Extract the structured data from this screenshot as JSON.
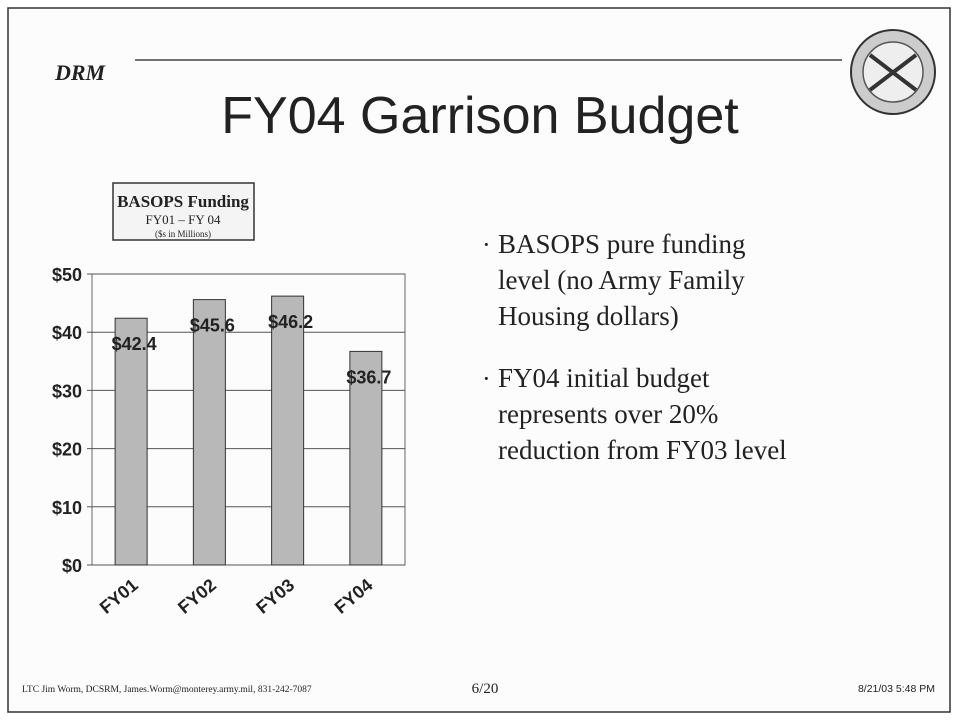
{
  "header": {
    "org": "DRM"
  },
  "title": "FY04 Garrison Budget",
  "chart_data": {
    "type": "bar",
    "title": "BASOPS Funding",
    "subtitle": "FY01 – FY 04",
    "note": "($s in Millions)",
    "categories": [
      "FY01",
      "FY02",
      "FY03",
      "FY04"
    ],
    "values": [
      42.4,
      45.6,
      46.2,
      36.7
    ],
    "value_labels": [
      "$42.4",
      "$45.6",
      "$46.2",
      "$36.7"
    ],
    "color": "#b8b8b8",
    "ylim": [
      0,
      50
    ],
    "yticks": [
      {
        "value": 0,
        "label": "$0"
      },
      {
        "value": 10,
        "label": "$10"
      },
      {
        "value": 20,
        "label": "$20"
      },
      {
        "value": 30,
        "label": "$30"
      },
      {
        "value": 40,
        "label": "$40"
      },
      {
        "value": 50,
        "label": "$50"
      }
    ],
    "grid": true
  },
  "bullets": [
    [
      "BASOPS pure funding",
      "level (no Army Family",
      "Housing dollars)"
    ],
    [
      "FY04 initial budget",
      "represents over 20%",
      "reduction from FY03 level"
    ]
  ],
  "footer": {
    "author": "LTC Jim Worm, DCSRM, James.Worm@monterey.army.mil, 831-242-7087",
    "page": "6/20",
    "date": "8/21/03 5:48 PM"
  }
}
